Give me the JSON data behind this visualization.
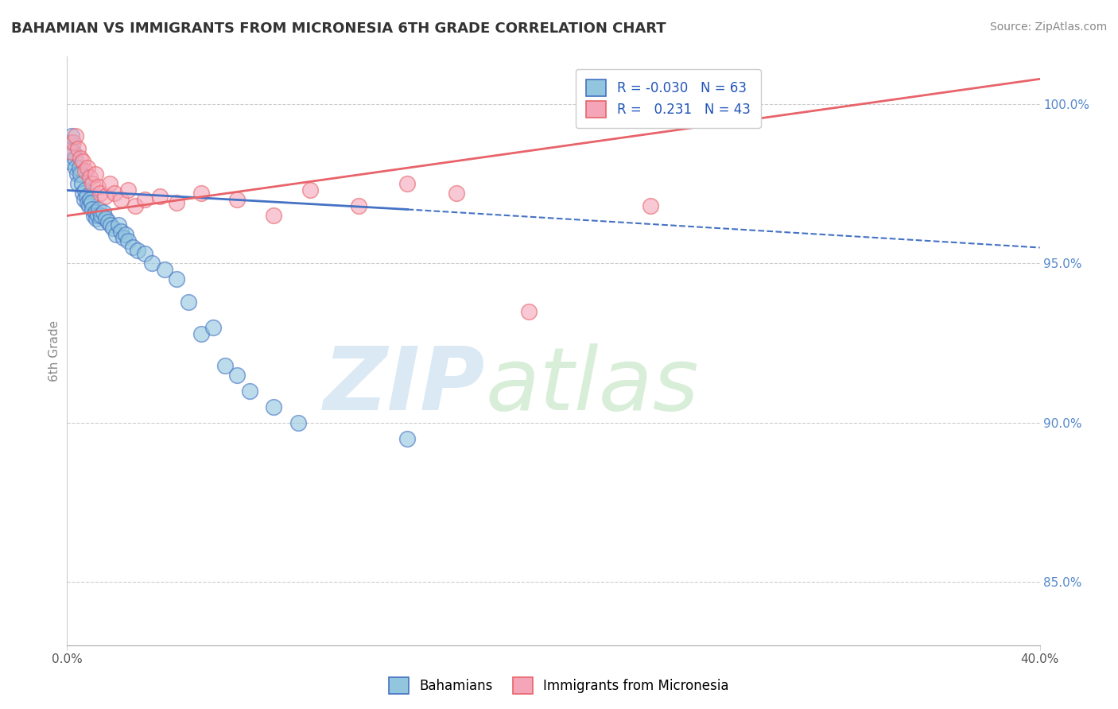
{
  "title": "BAHAMIAN VS IMMIGRANTS FROM MICRONESIA 6TH GRADE CORRELATION CHART",
  "source": "Source: ZipAtlas.com",
  "ylabel": "6th Grade",
  "xlim": [
    0.0,
    40.0
  ],
  "ylim": [
    83.0,
    101.5
  ],
  "yticks": [
    85.0,
    90.0,
    95.0,
    100.0
  ],
  "ytick_labels": [
    "85.0%",
    "90.0%",
    "95.0%",
    "100.0%"
  ],
  "legend_R1": "-0.030",
  "legend_N1": "63",
  "legend_R2": "0.231",
  "legend_N2": "43",
  "color_blue": "#92c5de",
  "color_pink": "#f4a6b8",
  "color_blue_line": "#4472c4",
  "color_pink_line": "#e8636a",
  "blue_scatter_x": [
    0.1,
    0.15,
    0.2,
    0.25,
    0.3,
    0.35,
    0.4,
    0.45,
    0.5,
    0.55,
    0.6,
    0.65,
    0.7,
    0.75,
    0.8,
    0.85,
    0.9,
    0.95,
    1.0,
    1.05,
    1.1,
    1.15,
    1.2,
    1.25,
    1.3,
    1.35,
    1.4,
    1.5,
    1.6,
    1.7,
    1.8,
    1.9,
    2.0,
    2.1,
    2.2,
    2.3,
    2.4,
    2.5,
    2.7,
    2.9,
    3.2,
    3.5,
    4.0,
    4.5,
    5.0,
    5.5,
    6.0,
    6.5,
    7.0,
    7.5,
    8.5,
    9.5,
    14.0
  ],
  "blue_scatter_y": [
    98.2,
    98.8,
    99.0,
    98.5,
    98.3,
    98.0,
    97.8,
    97.5,
    98.0,
    97.8,
    97.5,
    97.2,
    97.0,
    97.3,
    97.1,
    96.9,
    96.8,
    97.0,
    96.9,
    96.7,
    96.5,
    96.6,
    96.4,
    96.5,
    96.7,
    96.3,
    96.5,
    96.6,
    96.4,
    96.3,
    96.2,
    96.1,
    95.9,
    96.2,
    96.0,
    95.8,
    95.9,
    95.7,
    95.5,
    95.4,
    95.3,
    95.0,
    94.8,
    94.5,
    93.8,
    92.8,
    93.0,
    91.8,
    91.5,
    91.0,
    90.5,
    90.0,
    89.5
  ],
  "pink_scatter_x": [
    0.15,
    0.25,
    0.35,
    0.45,
    0.55,
    0.65,
    0.75,
    0.85,
    0.95,
    1.05,
    1.15,
    1.25,
    1.35,
    1.55,
    1.75,
    1.95,
    2.2,
    2.5,
    2.8,
    3.2,
    3.8,
    4.5,
    5.5,
    7.0,
    8.5,
    10.0,
    12.0,
    14.0,
    16.0,
    19.0,
    24.0
  ],
  "pink_scatter_y": [
    98.5,
    98.8,
    99.0,
    98.6,
    98.3,
    98.2,
    97.9,
    98.0,
    97.7,
    97.5,
    97.8,
    97.4,
    97.2,
    97.1,
    97.5,
    97.2,
    97.0,
    97.3,
    96.8,
    97.0,
    97.1,
    96.9,
    97.2,
    97.0,
    96.5,
    97.3,
    96.8,
    97.5,
    97.2,
    93.5,
    96.8
  ],
  "blue_line_x1": 0.0,
  "blue_line_y1": 97.3,
  "blue_line_x2": 14.0,
  "blue_line_y2": 96.7,
  "blue_dash_x1": 14.0,
  "blue_dash_y1": 96.7,
  "blue_dash_x2": 40.0,
  "blue_dash_y2": 95.5,
  "pink_line_x1": 0.0,
  "pink_line_y1": 96.5,
  "pink_line_x2": 40.0,
  "pink_line_y2": 100.8,
  "xtick_positions": [
    0.0,
    40.0
  ],
  "xtick_labels": [
    "0.0%",
    "40.0%"
  ]
}
